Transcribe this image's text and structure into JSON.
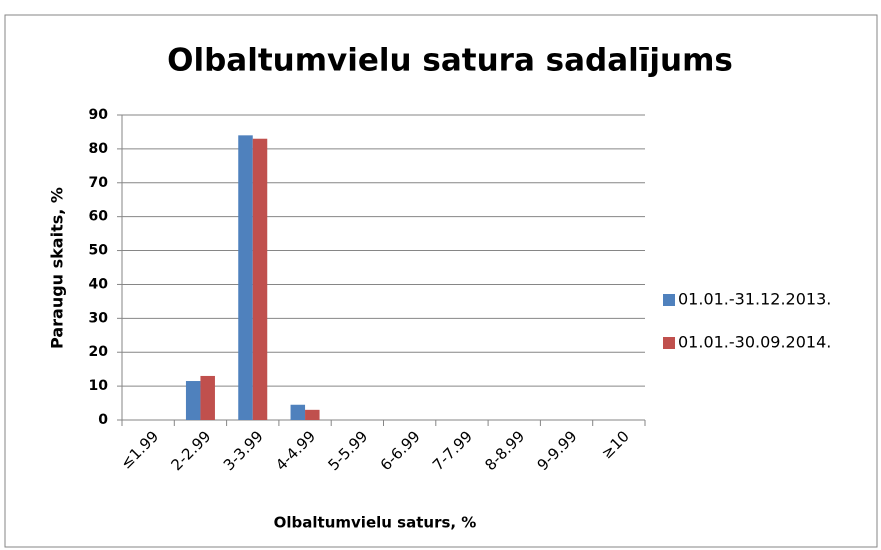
{
  "chart_data": {
    "type": "bar",
    "title": "Olbaltumvielu satura sadalījums",
    "x_label": "Olbaltumvielu saturs, %",
    "y_label": "Paraugu skaits, %",
    "categories": [
      "≤1.99",
      "2-2.99",
      "3-3.99",
      "4-4.99",
      "5-5.99",
      "6-6.99",
      "7-7.99",
      "8-8.99",
      "9-9.99",
      "≥10"
    ],
    "series": [
      {
        "name": "01.01.-31.12.2013.",
        "color": "#4f81bd",
        "values": [
          0,
          11.5,
          84,
          4.5,
          0,
          0,
          0,
          0,
          0,
          0
        ]
      },
      {
        "name": "01.01.-30.09.2014.",
        "color": "#c0504d",
        "values": [
          0,
          13,
          83,
          3,
          0,
          0,
          0,
          0,
          0,
          0
        ]
      }
    ],
    "ylim": [
      0,
      90
    ],
    "yticks": [
      0,
      10,
      20,
      30,
      40,
      50,
      60,
      70,
      80,
      90
    ],
    "grid": true,
    "legend": "right"
  }
}
